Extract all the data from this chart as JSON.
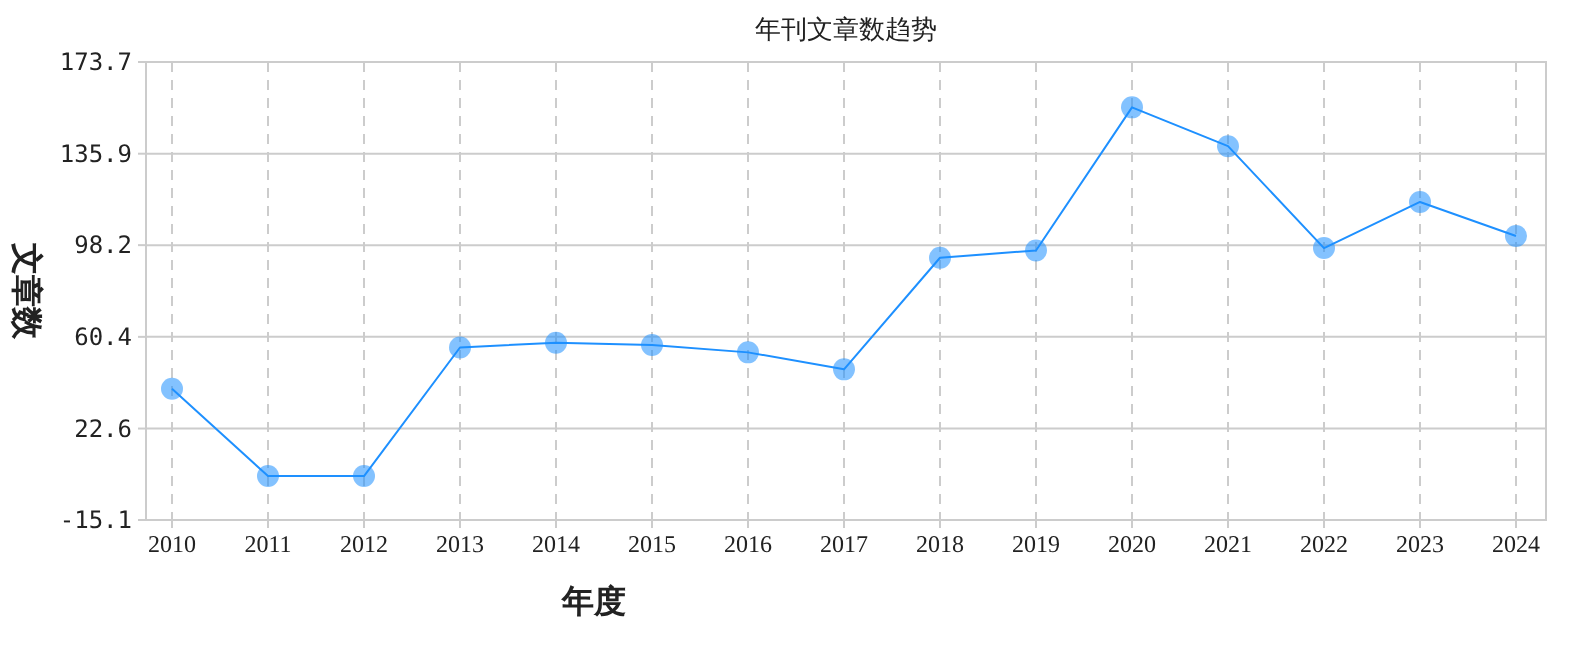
{
  "chart_data": {
    "type": "line",
    "title": "年刊文章数趋势",
    "xlabel": "年度",
    "ylabel": "文章数",
    "categories": [
      "2010",
      "2011",
      "2012",
      "2013",
      "2014",
      "2015",
      "2016",
      "2017",
      "2018",
      "2019",
      "2020",
      "2021",
      "2022",
      "2023",
      "2024"
    ],
    "series": [
      {
        "color": "#1e90ff",
        "values": [
          39,
          3,
          3,
          56,
          58,
          57,
          54,
          47,
          93,
          96,
          155,
          139,
          97,
          116,
          102
        ]
      }
    ],
    "ylim": [
      -15.1,
      173.7
    ],
    "yticks": [
      -15.1,
      22.6,
      60.4,
      98.2,
      135.9,
      173.7
    ],
    "grid": true,
    "marker": "circle",
    "line_style": "solid"
  }
}
